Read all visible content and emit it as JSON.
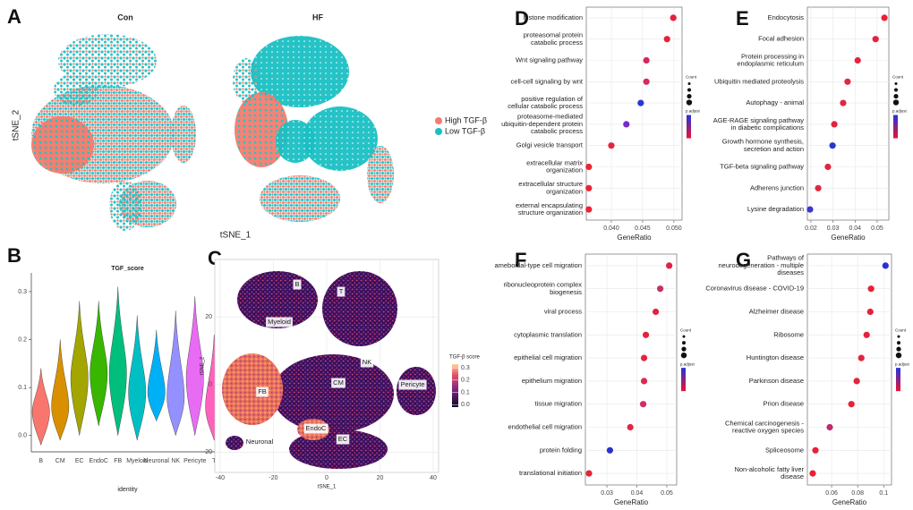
{
  "chart_data": [
    {
      "type": "tsne",
      "panel": "A",
      "subtitles": [
        "Con",
        "HF"
      ],
      "xlabel": "tSNE_1",
      "ylabel": "tSNE_2",
      "legend": [
        {
          "name": "High TGF-β",
          "color": "#f47c6e"
        },
        {
          "name": "Low TGF-β",
          "color": "#19c0c3"
        }
      ]
    },
    {
      "type": "violin",
      "panel": "B",
      "title": "TGF_score",
      "xlabel": "identity",
      "categories": [
        "B",
        "CM",
        "EC",
        "EndoC",
        "FB",
        "Myeloid",
        "Neuronal",
        "NK",
        "Pericyte",
        "T"
      ],
      "values": [
        0.05,
        0.06,
        0.12,
        0.13,
        0.13,
        0.09,
        0.09,
        0.08,
        0.12,
        0.06
      ],
      "ranges": [
        [
          -0.02,
          0.14
        ],
        [
          -0.01,
          0.2
        ],
        [
          0.0,
          0.28
        ],
        [
          0.02,
          0.28
        ],
        [
          0.0,
          0.31
        ],
        [
          -0.01,
          0.25
        ],
        [
          0.03,
          0.22
        ],
        [
          0.0,
          0.26
        ],
        [
          0.0,
          0.29
        ],
        [
          -0.01,
          0.21
        ]
      ],
      "colors": [
        "#f8766d",
        "#d89000",
        "#a3a500",
        "#39b600",
        "#00bf7d",
        "#00bfc4",
        "#00b0f6",
        "#9590ff",
        "#e76bf3",
        "#ff62bc"
      ],
      "ylim": [
        -0.034,
        0.339
      ],
      "yticks": [
        {
          "value": 0,
          "label": "0.0"
        },
        0.1,
        0.2,
        0.3
      ]
    },
    {
      "type": "tsne_map",
      "panel": "C",
      "xlabel": "tSNE_1",
      "ylabel": "tSNE_2",
      "cluster_labels": [
        "B",
        "T",
        "Myeloid",
        "NK",
        "CM",
        "FB",
        "Pericyte",
        "EndoC",
        "EC",
        "Neuronal"
      ],
      "xlim": [
        -42,
        42
      ],
      "xticks": [
        -40,
        -20,
        0,
        20,
        40
      ],
      "ylim": [
        -26,
        37
      ],
      "yticks": [
        -20,
        0,
        20
      ],
      "colorbar_title": "TGF-β score",
      "clim": [
        -0.02,
        0.33
      ],
      "cticks": [
        {
          "value": 0,
          "label": "0.0"
        },
        0.1,
        0.2,
        0.3
      ]
    },
    {
      "type": "dot",
      "panel": "D",
      "xlabel": "GeneRatio",
      "legend_titles": [
        "Count",
        "p.adjust"
      ],
      "categories": [
        "histone modification",
        "proteasomal protein\ncatabolic process",
        "Wnt signaling pathway",
        "cell-cell signaling by wnt",
        "positive regulation of\ncellular catabolic process",
        "proteasome-mediated\nubiquitin-dependent protein\ncatabolic process",
        "Golgi vesicle transport",
        "extracellular matrix\norganization",
        "extracellular structure\norganization",
        "external encapsulating\nstructure organization"
      ],
      "values": [
        0.0499,
        0.0489,
        0.0456,
        0.0456,
        0.0447,
        0.0424,
        0.04,
        0.0364,
        0.0364,
        0.0364
      ],
      "colors": [
        "#e8213a",
        "#e4243b",
        "#d6265a",
        "#d42a5c",
        "#2b35d6",
        "#7a2bc7",
        "#e4253a",
        "#ee2233",
        "#ee2233",
        "#ee2233"
      ],
      "xlim": [
        0.036,
        0.0513
      ],
      "xticks": [
        {
          "value": 0.04,
          "label": "0.040"
        },
        {
          "value": 0.045,
          "label": "0.045"
        },
        {
          "value": 0.05,
          "label": "0.050"
        }
      ]
    },
    {
      "type": "dot",
      "panel": "E",
      "xlabel": "GeneRatio",
      "legend_titles": [
        "Count",
        "p.adjust"
      ],
      "categories": [
        "Endocytosis",
        "Focal adhesion",
        "Protein processing in\nendoplasmic reticulum",
        "Ubiquitin mediated proteolysis",
        "Autophagy - animal",
        "AGE-RAGE signaling pathway\nin diabetic complications",
        "Growth hormone synthesis,\nsecretion and action",
        "TGF-beta signaling pathway",
        "Adherens junction",
        "Lysine degradation"
      ],
      "values": [
        0.0533,
        0.0493,
        0.0412,
        0.0366,
        0.0346,
        0.0306,
        0.0298,
        0.0277,
        0.0233,
        0.0196
      ],
      "colors": [
        "#ee1f35",
        "#e8213c",
        "#e4243e",
        "#e02840",
        "#dd2a44",
        "#e2243e",
        "#2a38cc",
        "#e2253e",
        "#e02840",
        "#3b37d2"
      ],
      "xlim": [
        0.0184,
        0.0553
      ],
      "xticks": [
        0.02,
        0.03,
        0.04,
        0.05
      ]
    },
    {
      "type": "dot",
      "panel": "F",
      "xlabel": "GeneRatio",
      "legend_titles": [
        "Count",
        "p.adjust"
      ],
      "categories": [
        "ameboidal-type cell migration",
        "ribonucleoprotein complex\nbiogenesis",
        "viral process",
        "cytoplasmic translation",
        "epithelial cell migration",
        "epithelium migration",
        "tissue migration",
        "endothelial cell migration",
        "protein folding",
        "translational initiation"
      ],
      "values": [
        0.0508,
        0.0478,
        0.0463,
        0.043,
        0.0424,
        0.0424,
        0.0421,
        0.0378,
        0.031,
        0.024
      ],
      "colors": [
        "#e0204a",
        "#c82d6a",
        "#e2243f",
        "#e62238",
        "#e32440",
        "#dc2a50",
        "#d02c68",
        "#e42440",
        "#2b2fd0",
        "#e62238"
      ],
      "xlim": [
        0.0228,
        0.0533
      ],
      "xticks": [
        0.03,
        0.04,
        0.05
      ]
    },
    {
      "type": "dot",
      "panel": "G",
      "xlabel": "GeneRatio",
      "legend_titles": [
        "Count",
        "p.adjust"
      ],
      "categories": [
        "Pathways of\nneurodegeneration - multiple\ndiseases",
        "Coronavirus disease - COVID-19",
        "Alzheimer disease",
        "Ribosome",
        "Huntington disease",
        "Parkinson disease",
        "Prion disease",
        "Chemical carcinogenesis -\nreactive oxygen species",
        "Spliceosome",
        "Non-alcoholic fatty liver\ndisease"
      ],
      "values": [
        0.1014,
        0.0903,
        0.0897,
        0.0869,
        0.0828,
        0.0793,
        0.0752,
        0.0586,
        0.0476,
        0.0455
      ],
      "colors": [
        "#2a30d8",
        "#e6213a",
        "#e4223c",
        "#e4223c",
        "#e2243e",
        "#e2243e",
        "#e4223c",
        "#c02a6e",
        "#e8203a",
        "#e8203a"
      ],
      "xlim": [
        0.0414,
        0.106
      ],
      "xticks": [
        0.06,
        0.08,
        0.1
      ]
    }
  ]
}
